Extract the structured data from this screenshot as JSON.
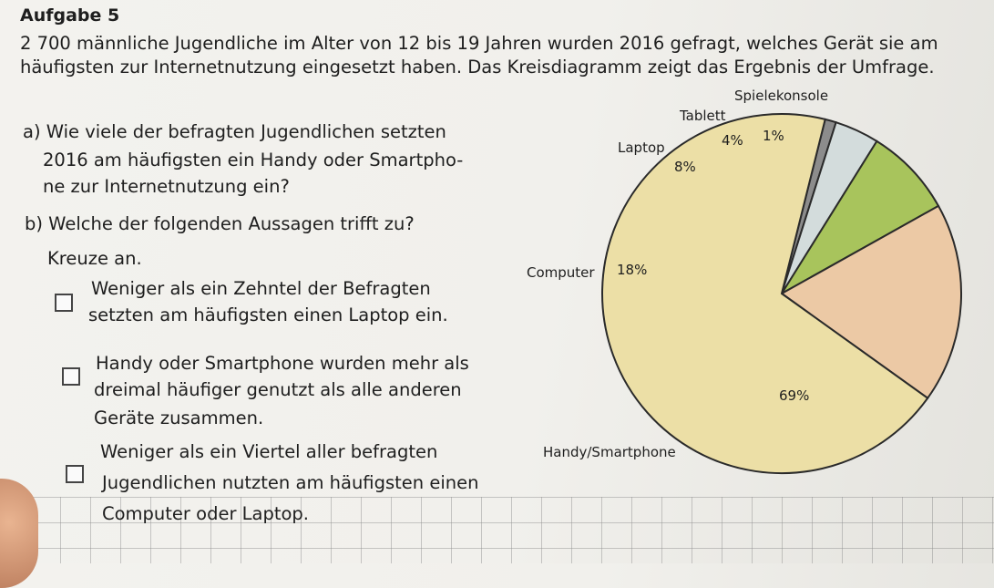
{
  "task": {
    "title": "Aufgabe 5",
    "intro": [
      "2 700 männliche Jugendliche im Alter von 12 bis 19 Jahren wurden 2016 gefragt, welches Gerät sie am",
      "häufigsten zur Internetnutzung eingesetzt haben. Das Kreisdiagramm zeigt das Ergebnis der Umfrage."
    ],
    "question_a": [
      "a) Wie viele der befragten Jugendlichen setzten",
      "2016 am häufigsten ein Handy oder Smartpho-",
      "ne zur Internetnutzung ein?"
    ],
    "question_b": [
      "b) Welche der folgenden Aussagen trifft zu?",
      "Kreuze an."
    ],
    "options": [
      {
        "lines": [
          "Weniger als ein Zehntel der Befragten",
          "setzten am häufigsten einen Laptop ein."
        ]
      },
      {
        "lines": [
          "Handy oder Smartphone wurden mehr als",
          "dreimal häufiger genutzt als alle anderen",
          "Geräte zusammen."
        ]
      },
      {
        "lines": [
          "Weniger als ein Viertel aller befragten",
          "Jugendlichen  nutzten am häufigsten einen",
          "Computer oder Laptop."
        ]
      }
    ]
  },
  "chart_data": {
    "type": "pie",
    "title": "",
    "slices": [
      {
        "name": "Handy/Smartphone",
        "value": 69,
        "label": "69%",
        "color": "#ecdfa6"
      },
      {
        "name": "Computer",
        "value": 18,
        "label": "18%",
        "color": "#ecc9a5"
      },
      {
        "name": "Laptop",
        "value": 8,
        "label": "8%",
        "color": "#a8c45c"
      },
      {
        "name": "Tablett",
        "value": 4,
        "label": "4%",
        "color": "#d3dcdc"
      },
      {
        "name": "Spielekonsole",
        "value": 1,
        "label": "1%",
        "color": "#8c8c8c"
      }
    ]
  }
}
